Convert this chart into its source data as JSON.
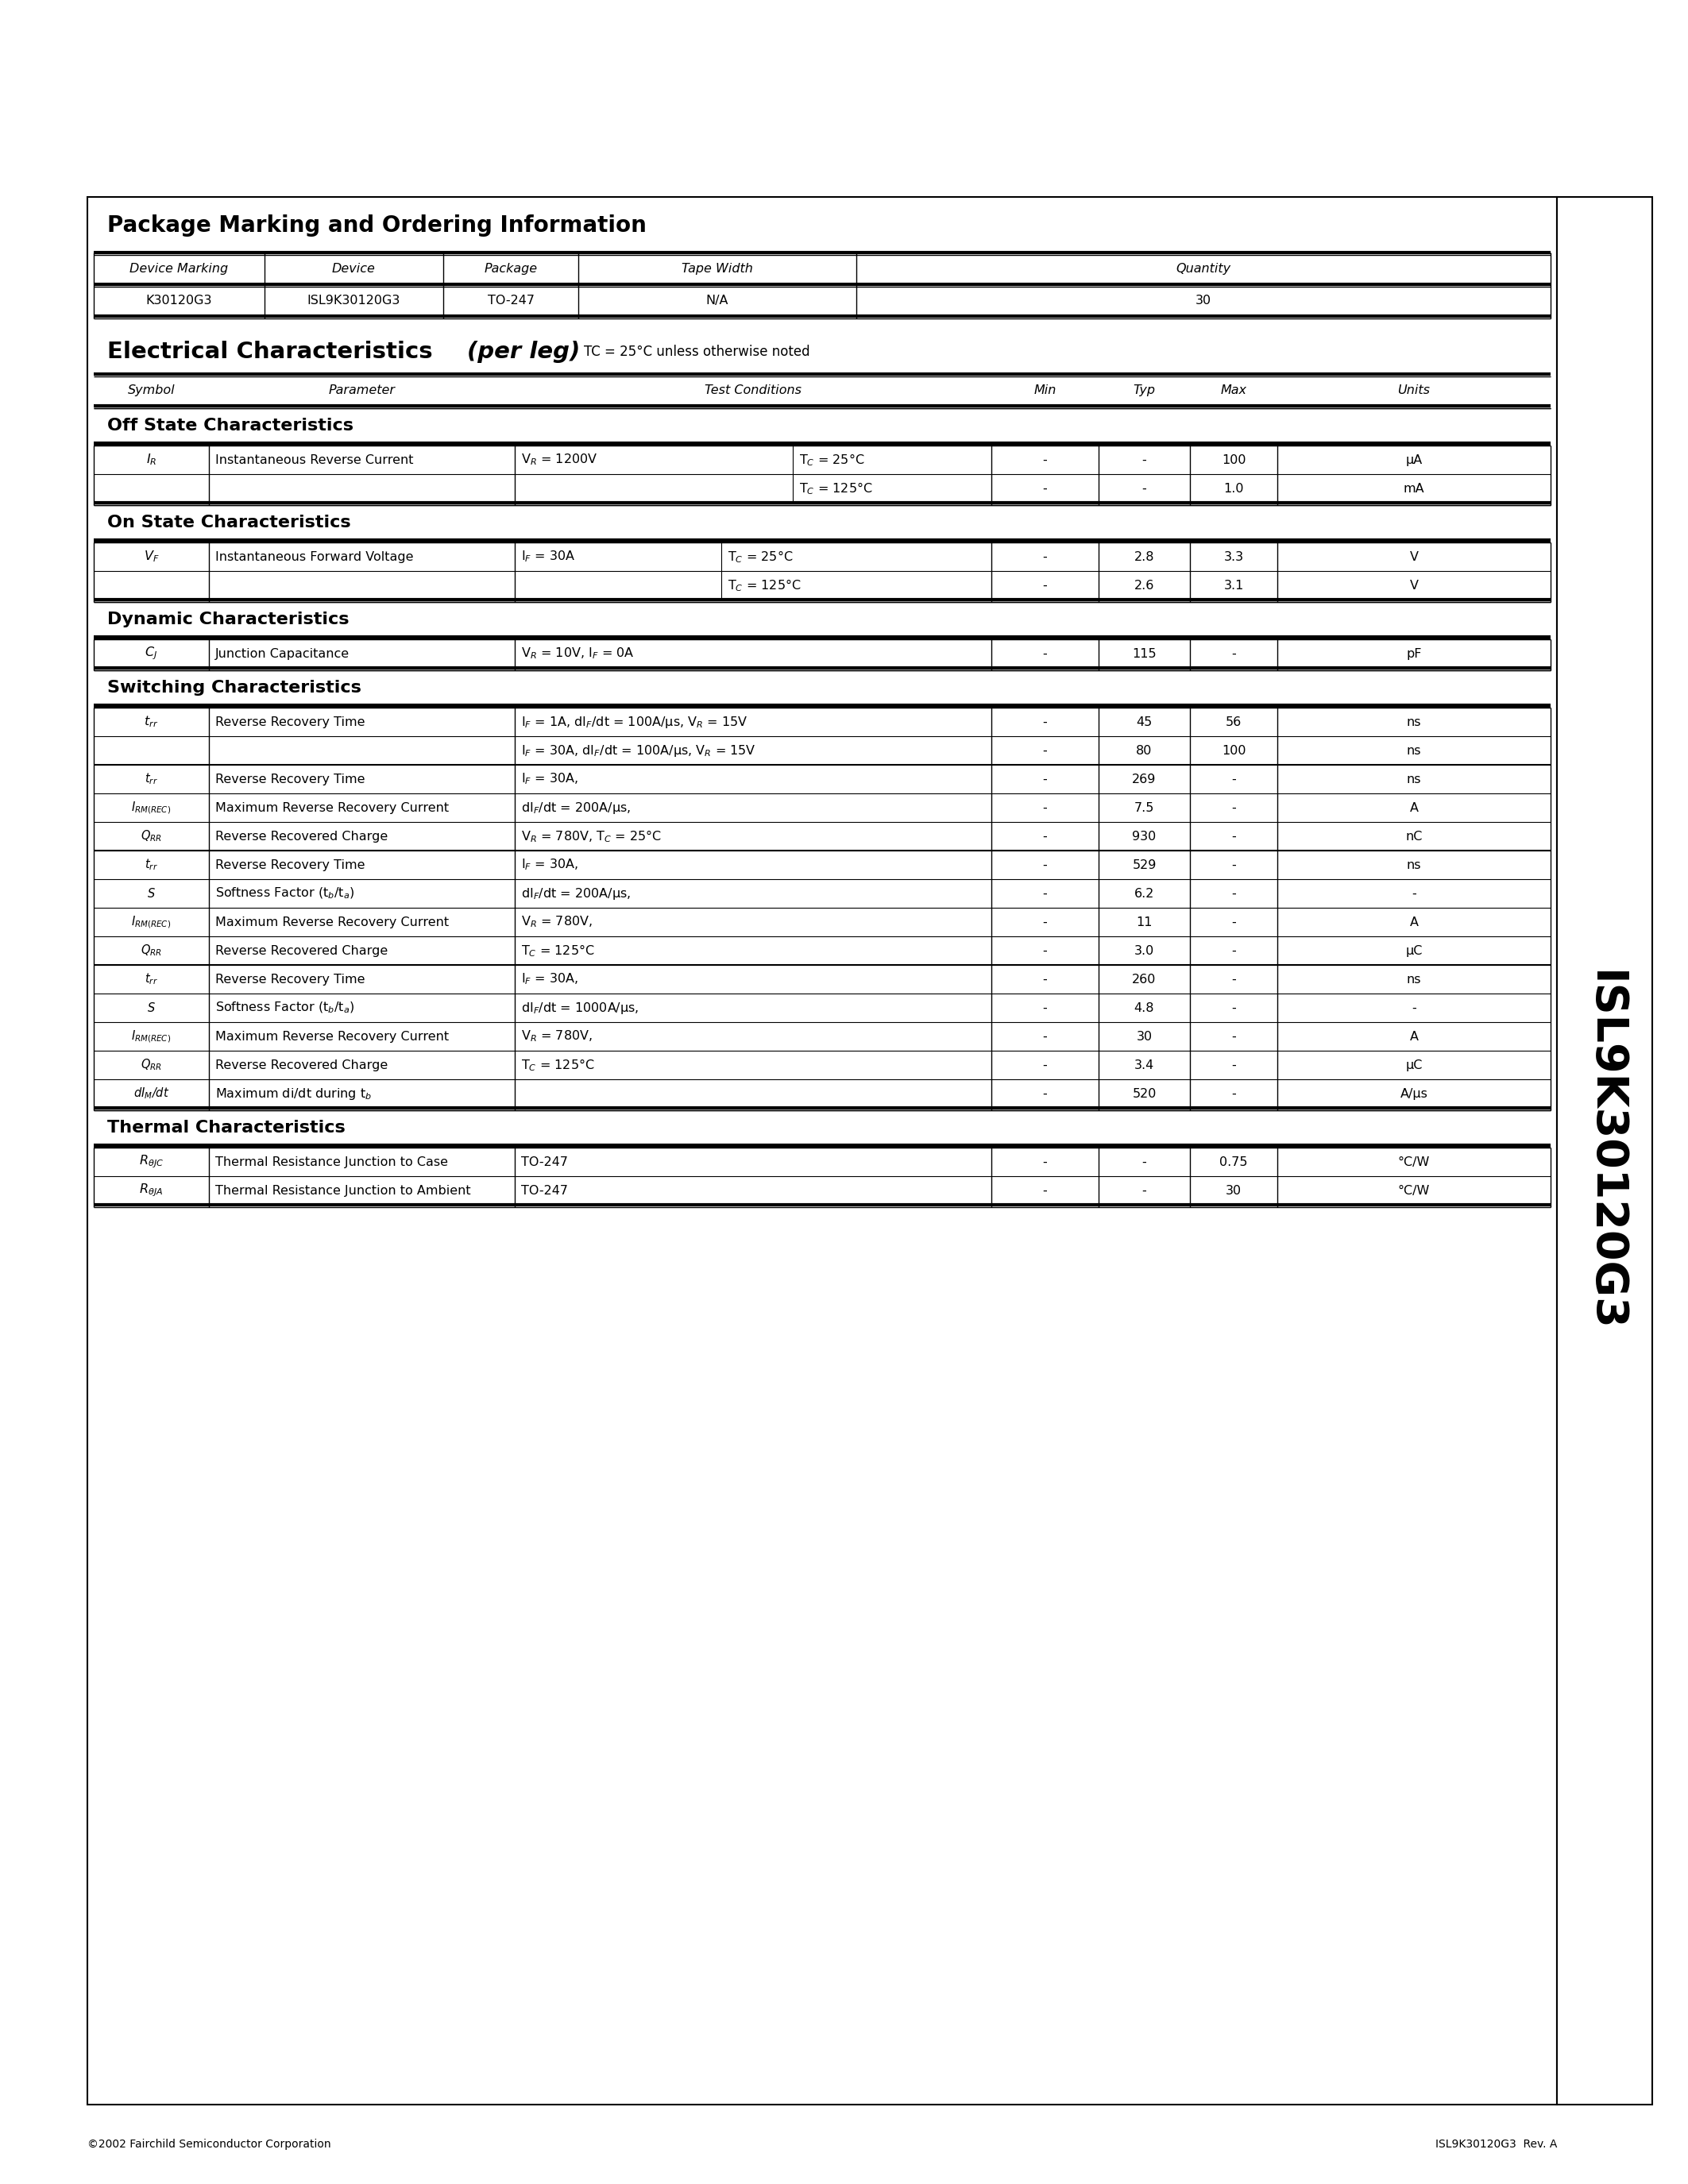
{
  "page_bg": "#ffffff",
  "title_sidebar": "ISL9K30120G3",
  "footer_left": "©2002 Fairchild Semiconductor Corporation",
  "footer_right": "ISL9K30120G3  Rev. A",
  "section1_title": "Package Marking and Ordering Information",
  "pkg_headers": [
    "Device Marking",
    "Device",
    "Package",
    "Tape Width",
    "Quantity"
  ],
  "pkg_row": [
    "K30120G3",
    "ISL9K30120G3",
    "TO-247",
    "N/A",
    "30"
  ],
  "section2_title": "Electrical Characteristics",
  "section2_subtitle": "(per leg)",
  "section2_note": "TC = 25°C unless otherwise noted",
  "ec_headers": [
    "Symbol",
    "Parameter",
    "Test Conditions",
    "Min",
    "Typ",
    "Max",
    "Units"
  ],
  "subsec_off": "Off State Characteristics",
  "subsec_on": "On State Characteristics",
  "subsec_dynamic": "Dynamic Characteristics",
  "subsec_switching": "Switching Characteristics",
  "subsec_thermal": "Thermal Characteristics"
}
